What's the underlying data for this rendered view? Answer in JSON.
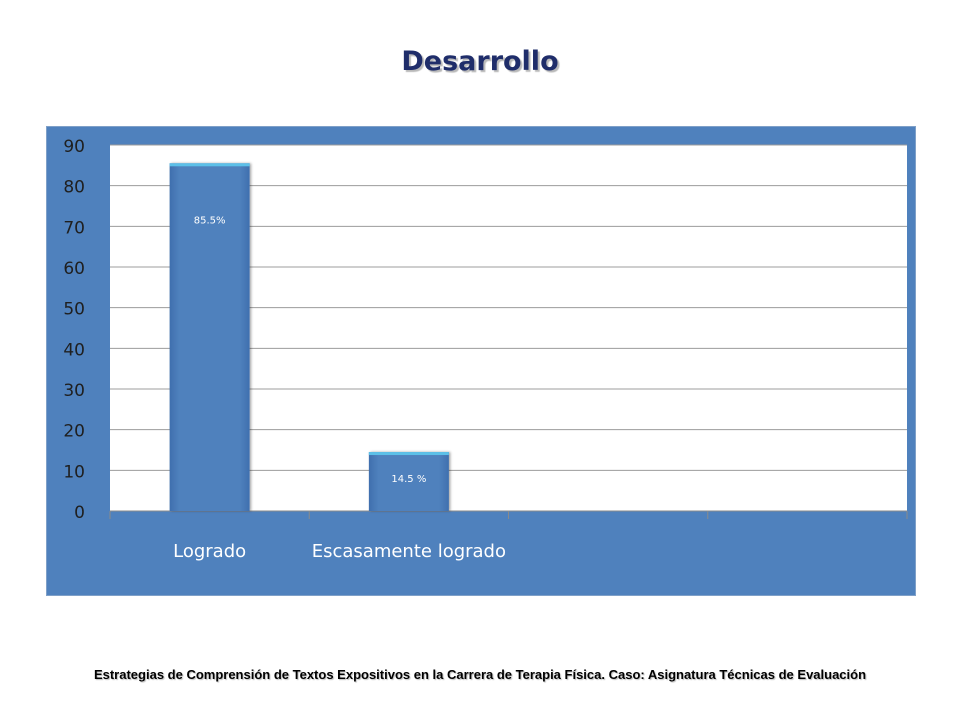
{
  "slide": {
    "title": "Desarrollo",
    "footer": "Estrategias de Comprensión de Textos Expositivos en la Carrera de Terapia Física. Caso: Asignatura Técnicas de Evaluación"
  },
  "colors": {
    "frame_background": "#4F81BD",
    "plot_background": "#FFFFFF",
    "bar_fill": "#4F81BD",
    "bar_top": "#5CC0E8",
    "gridline": "#9C9C9C",
    "axis_text": "#1F1F1F",
    "category_text": "#FFFFFF",
    "title_color": "#1F2D6A"
  },
  "chart_data": {
    "type": "bar",
    "categories": [
      "Logrado",
      "Escasamente logrado",
      "",
      ""
    ],
    "values": [
      85.5,
      14.5,
      null,
      null
    ],
    "data_labels": [
      "85.5%",
      "14.5 %",
      "",
      ""
    ],
    "yticks": [
      "0",
      "10",
      "20",
      "30",
      "40",
      "50",
      "60",
      "70",
      "80",
      "90"
    ],
    "ylim": [
      0,
      90
    ],
    "title": "",
    "xlabel": "",
    "ylabel": "",
    "grid": true,
    "legend": "none"
  }
}
